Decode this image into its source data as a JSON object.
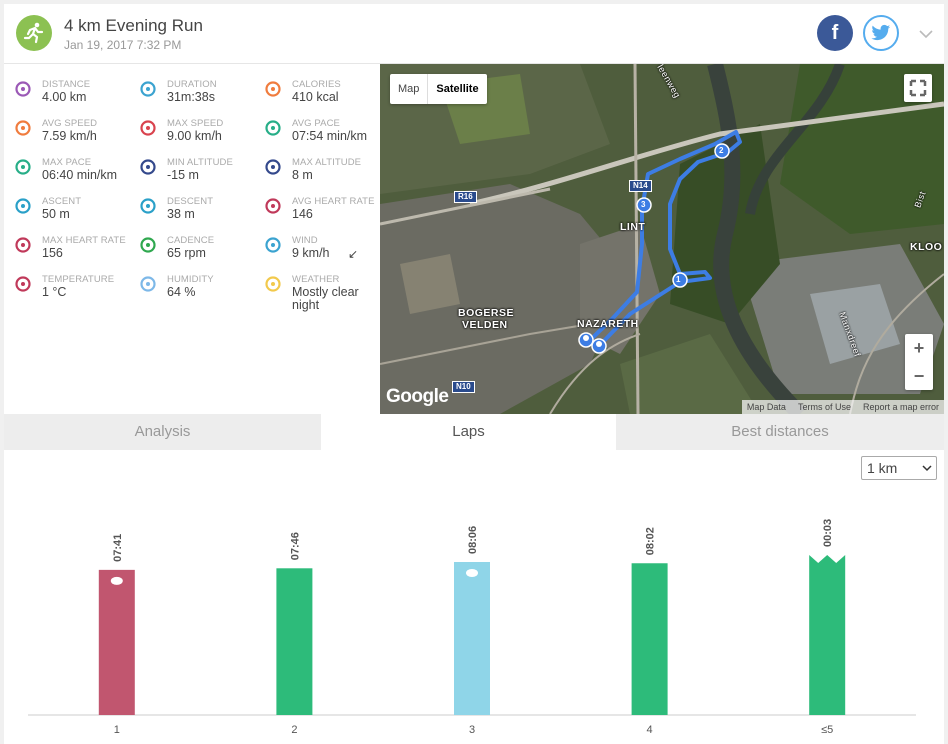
{
  "header": {
    "title": "4 km Evening Run",
    "date": "Jan 19, 2017 7:32 PM",
    "facebook_label": "f"
  },
  "stats": [
    {
      "label": "DISTANCE",
      "value": "4.00 km",
      "icon": "distance-icon",
      "color": "#9b59b6"
    },
    {
      "label": "DURATION",
      "value": "31m:38s",
      "icon": "stopwatch-icon",
      "color": "#3ba3d0"
    },
    {
      "label": "CALORIES",
      "value": "410 kcal",
      "icon": "flame-icon",
      "color": "#f07c3e"
    },
    {
      "label": "AVG SPEED",
      "value": "7.59 km/h",
      "icon": "speedometer-icon",
      "color": "#f07c3e"
    },
    {
      "label": "MAX SPEED",
      "value": "9.00 km/h",
      "icon": "speedometer-icon",
      "color": "#d9434e"
    },
    {
      "label": "AVG PACE",
      "value": "07:54 min/km",
      "icon": "pace-gauge-icon",
      "color": "#27ae88"
    },
    {
      "label": "MAX PACE",
      "value": "06:40 min/km",
      "icon": "pace-gauge-icon",
      "color": "#27ae88"
    },
    {
      "label": "MIN ALTITUDE",
      "value": "-15 m",
      "icon": "mountain-icon",
      "color": "#34498c"
    },
    {
      "label": "MAX ALTITUDE",
      "value": "8 m",
      "icon": "mountain-icon",
      "color": "#34498c"
    },
    {
      "label": "ASCENT",
      "value": "50 m",
      "icon": "ascent-icon",
      "color": "#2aa0c8"
    },
    {
      "label": "DESCENT",
      "value": "38 m",
      "icon": "descent-icon",
      "color": "#2aa0c8"
    },
    {
      "label": "AVG HEART RATE",
      "value": "146",
      "icon": "heart-rate-icon",
      "color": "#c0395a"
    },
    {
      "label": "MAX HEART RATE",
      "value": "156",
      "icon": "heart-rate-icon",
      "color": "#c0395a"
    },
    {
      "label": "CADENCE",
      "value": "65 rpm",
      "icon": "cadence-icon",
      "color": "#2fa84f"
    },
    {
      "label": "WIND",
      "value": "9 km/h",
      "icon": "wind-icon",
      "color": "#3ba3d0",
      "extra": "↙"
    },
    {
      "label": "TEMPERATURE",
      "value": "1 °C",
      "icon": "thermometer-icon",
      "color": "#c0395a"
    },
    {
      "label": "HUMIDITY",
      "value": "64 %",
      "icon": "humidity-icon",
      "color": "#7db8e8"
    },
    {
      "label": "WEATHER",
      "value": "Mostly clear night",
      "icon": "moon-icon",
      "color": "#f2c94c"
    }
  ],
  "map": {
    "btn_map": "Map",
    "btn_satellite": "Satellite",
    "zoom_in": "+",
    "zoom_out": "−",
    "google": "Google",
    "attribution": [
      "Map Data",
      "Terms of Use",
      "Report a map error"
    ],
    "labels": [
      "BOGERSE",
      "VELDEN",
      "NAZARETH",
      "LINT",
      "KLOO",
      "Manxdreef",
      "Bist",
      "leenweg"
    ],
    "road_signs": [
      "N14",
      "R16",
      "N10"
    ],
    "markers": [
      "1",
      "2",
      "3"
    ]
  },
  "tabs": [
    "Analysis",
    "Laps",
    "Best distances"
  ],
  "active_tab": "Laps",
  "lap_select": "1 km",
  "colors": {
    "route": "#3d7de4",
    "bar_slowest": "#c1566f",
    "bar_normal": "#2dbb7a",
    "bar_fastest": "#8fd5e8",
    "accent_green": "#8cc152"
  },
  "chart_data": {
    "type": "bar",
    "categories": [
      "1",
      "2",
      "3",
      "4",
      "≤5"
    ],
    "values": [
      461,
      466,
      486,
      482,
      3
    ],
    "value_labels": [
      "07:41",
      "07:46",
      "08:06",
      "08:02",
      "00:03"
    ],
    "bar_kinds": [
      "fastest",
      "normal",
      "slowest",
      "normal",
      "partial"
    ],
    "unit": "seconds per lap",
    "ylim": [
      0,
      540
    ],
    "grid": false,
    "legend": "none"
  }
}
